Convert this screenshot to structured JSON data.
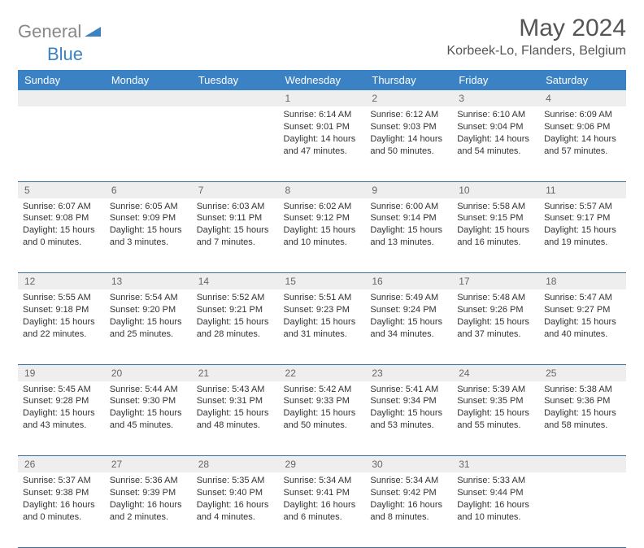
{
  "logo": {
    "text1": "General",
    "text2": "Blue"
  },
  "title": "May 2024",
  "location": "Korbeek-Lo, Flanders, Belgium",
  "colors": {
    "header_bg": "#3b82c4",
    "header_fg": "#ffffff",
    "daynum_bg": "#eeeeee",
    "daynum_fg": "#666666",
    "rule": "#3b6ea0",
    "title_fg": "#555555",
    "logo_gray": "#888888"
  },
  "weekdays": [
    "Sunday",
    "Monday",
    "Tuesday",
    "Wednesday",
    "Thursday",
    "Friday",
    "Saturday"
  ],
  "weeks": [
    [
      null,
      null,
      null,
      {
        "n": "1",
        "sr": "Sunrise: 6:14 AM",
        "ss": "Sunset: 9:01 PM",
        "dl": "Daylight: 14 hours and 47 minutes."
      },
      {
        "n": "2",
        "sr": "Sunrise: 6:12 AM",
        "ss": "Sunset: 9:03 PM",
        "dl": "Daylight: 14 hours and 50 minutes."
      },
      {
        "n": "3",
        "sr": "Sunrise: 6:10 AM",
        "ss": "Sunset: 9:04 PM",
        "dl": "Daylight: 14 hours and 54 minutes."
      },
      {
        "n": "4",
        "sr": "Sunrise: 6:09 AM",
        "ss": "Sunset: 9:06 PM",
        "dl": "Daylight: 14 hours and 57 minutes."
      }
    ],
    [
      {
        "n": "5",
        "sr": "Sunrise: 6:07 AM",
        "ss": "Sunset: 9:08 PM",
        "dl": "Daylight: 15 hours and 0 minutes."
      },
      {
        "n": "6",
        "sr": "Sunrise: 6:05 AM",
        "ss": "Sunset: 9:09 PM",
        "dl": "Daylight: 15 hours and 3 minutes."
      },
      {
        "n": "7",
        "sr": "Sunrise: 6:03 AM",
        "ss": "Sunset: 9:11 PM",
        "dl": "Daylight: 15 hours and 7 minutes."
      },
      {
        "n": "8",
        "sr": "Sunrise: 6:02 AM",
        "ss": "Sunset: 9:12 PM",
        "dl": "Daylight: 15 hours and 10 minutes."
      },
      {
        "n": "9",
        "sr": "Sunrise: 6:00 AM",
        "ss": "Sunset: 9:14 PM",
        "dl": "Daylight: 15 hours and 13 minutes."
      },
      {
        "n": "10",
        "sr": "Sunrise: 5:58 AM",
        "ss": "Sunset: 9:15 PM",
        "dl": "Daylight: 15 hours and 16 minutes."
      },
      {
        "n": "11",
        "sr": "Sunrise: 5:57 AM",
        "ss": "Sunset: 9:17 PM",
        "dl": "Daylight: 15 hours and 19 minutes."
      }
    ],
    [
      {
        "n": "12",
        "sr": "Sunrise: 5:55 AM",
        "ss": "Sunset: 9:18 PM",
        "dl": "Daylight: 15 hours and 22 minutes."
      },
      {
        "n": "13",
        "sr": "Sunrise: 5:54 AM",
        "ss": "Sunset: 9:20 PM",
        "dl": "Daylight: 15 hours and 25 minutes."
      },
      {
        "n": "14",
        "sr": "Sunrise: 5:52 AM",
        "ss": "Sunset: 9:21 PM",
        "dl": "Daylight: 15 hours and 28 minutes."
      },
      {
        "n": "15",
        "sr": "Sunrise: 5:51 AM",
        "ss": "Sunset: 9:23 PM",
        "dl": "Daylight: 15 hours and 31 minutes."
      },
      {
        "n": "16",
        "sr": "Sunrise: 5:49 AM",
        "ss": "Sunset: 9:24 PM",
        "dl": "Daylight: 15 hours and 34 minutes."
      },
      {
        "n": "17",
        "sr": "Sunrise: 5:48 AM",
        "ss": "Sunset: 9:26 PM",
        "dl": "Daylight: 15 hours and 37 minutes."
      },
      {
        "n": "18",
        "sr": "Sunrise: 5:47 AM",
        "ss": "Sunset: 9:27 PM",
        "dl": "Daylight: 15 hours and 40 minutes."
      }
    ],
    [
      {
        "n": "19",
        "sr": "Sunrise: 5:45 AM",
        "ss": "Sunset: 9:28 PM",
        "dl": "Daylight: 15 hours and 43 minutes."
      },
      {
        "n": "20",
        "sr": "Sunrise: 5:44 AM",
        "ss": "Sunset: 9:30 PM",
        "dl": "Daylight: 15 hours and 45 minutes."
      },
      {
        "n": "21",
        "sr": "Sunrise: 5:43 AM",
        "ss": "Sunset: 9:31 PM",
        "dl": "Daylight: 15 hours and 48 minutes."
      },
      {
        "n": "22",
        "sr": "Sunrise: 5:42 AM",
        "ss": "Sunset: 9:33 PM",
        "dl": "Daylight: 15 hours and 50 minutes."
      },
      {
        "n": "23",
        "sr": "Sunrise: 5:41 AM",
        "ss": "Sunset: 9:34 PM",
        "dl": "Daylight: 15 hours and 53 minutes."
      },
      {
        "n": "24",
        "sr": "Sunrise: 5:39 AM",
        "ss": "Sunset: 9:35 PM",
        "dl": "Daylight: 15 hours and 55 minutes."
      },
      {
        "n": "25",
        "sr": "Sunrise: 5:38 AM",
        "ss": "Sunset: 9:36 PM",
        "dl": "Daylight: 15 hours and 58 minutes."
      }
    ],
    [
      {
        "n": "26",
        "sr": "Sunrise: 5:37 AM",
        "ss": "Sunset: 9:38 PM",
        "dl": "Daylight: 16 hours and 0 minutes."
      },
      {
        "n": "27",
        "sr": "Sunrise: 5:36 AM",
        "ss": "Sunset: 9:39 PM",
        "dl": "Daylight: 16 hours and 2 minutes."
      },
      {
        "n": "28",
        "sr": "Sunrise: 5:35 AM",
        "ss": "Sunset: 9:40 PM",
        "dl": "Daylight: 16 hours and 4 minutes."
      },
      {
        "n": "29",
        "sr": "Sunrise: 5:34 AM",
        "ss": "Sunset: 9:41 PM",
        "dl": "Daylight: 16 hours and 6 minutes."
      },
      {
        "n": "30",
        "sr": "Sunrise: 5:34 AM",
        "ss": "Sunset: 9:42 PM",
        "dl": "Daylight: 16 hours and 8 minutes."
      },
      {
        "n": "31",
        "sr": "Sunrise: 5:33 AM",
        "ss": "Sunset: 9:44 PM",
        "dl": "Daylight: 16 hours and 10 minutes."
      },
      null
    ]
  ]
}
